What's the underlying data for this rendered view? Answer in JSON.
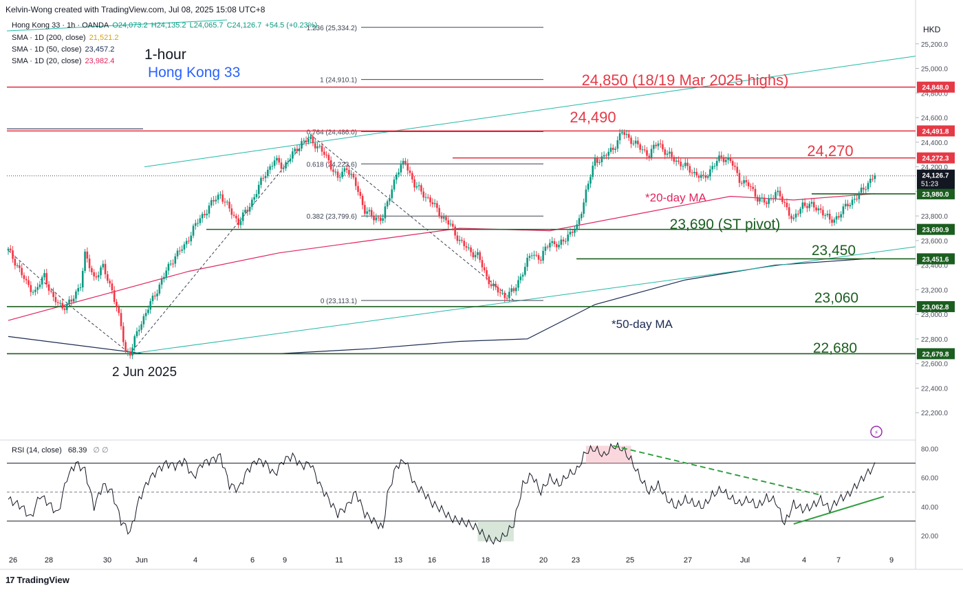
{
  "header": {
    "attribution": "Kelvin-Wong created with TradingView.com, Jul 08, 2025 15:08 UTC+8"
  },
  "legend": {
    "symbol": "Hong Kong 33 · 1h · OANDA",
    "ohlc": {
      "o": "O24,073.2",
      "h": "H24,135.2",
      "l": "L24,065.7",
      "c": "C24,126.7",
      "chg": "+54.5 (+0.23%)"
    },
    "sma200": {
      "label": "SMA · 1D (200, close)",
      "value": "21,521.2",
      "color": "#d4a017"
    },
    "sma50": {
      "label": "SMA · 1D (50, close)",
      "value": "23,457.2",
      "color": "#1a2a52"
    },
    "sma20": {
      "label": "SMA · 1D (20, close)",
      "value": "23,982.4",
      "color": "#e0245e"
    }
  },
  "currency": "HKD",
  "footer": {
    "brand": "TradingView"
  },
  "rsi_legend": {
    "label": "RSI (14, close)",
    "value": "68.39",
    "extra": "∅ ∅"
  },
  "chart_data": {
    "type": "candlestick",
    "timeframe": "1-hour",
    "instrument": "Hong Kong 33",
    "y_axis": {
      "ylim": [
        22000,
        25400
      ],
      "ticks": [
        22200,
        22400,
        22600,
        22800,
        23000,
        23200,
        23400,
        23600,
        23800,
        24000,
        24200,
        24400,
        24600,
        24800,
        25000,
        25200
      ],
      "tick_labels": [
        "22,200.0",
        "22,400.0",
        "22,600.0",
        "22,800.0",
        "23,000.0",
        "23,200.0",
        "23,400.0",
        "23,600.0",
        "23,800.0",
        "24,000.0",
        "24,200.0",
        "24,400.0",
        "24,600.0",
        "24,800.0",
        "25,000.0",
        "25,200.0"
      ]
    },
    "x_axis": {
      "labels": [
        "26",
        "28",
        "30",
        "Jun",
        "4",
        "6",
        "9",
        "11",
        "13",
        "16",
        "18",
        "20",
        "23",
        "25",
        "27",
        "Jul",
        "4",
        "7",
        "9"
      ]
    },
    "price_path": [
      [
        0,
        23520
      ],
      [
        2,
        23400
      ],
      [
        4,
        23250
      ],
      [
        6,
        23180
      ],
      [
        8,
        23320
      ],
      [
        10,
        23120
      ],
      [
        12,
        23060
      ],
      [
        14,
        23100
      ],
      [
        16,
        23250
      ],
      [
        17,
        23480
      ],
      [
        19,
        23300
      ],
      [
        21,
        23380
      ],
      [
        23,
        23200
      ],
      [
        25,
        22900
      ],
      [
        26,
        22700
      ],
      [
        27,
        22680
      ],
      [
        29,
        22900
      ],
      [
        31,
        23050
      ],
      [
        33,
        23200
      ],
      [
        35,
        23350
      ],
      [
        37,
        23480
      ],
      [
        39,
        23550
      ],
      [
        41,
        23700
      ],
      [
        43,
        23800
      ],
      [
        45,
        23900
      ],
      [
        47,
        23980
      ],
      [
        49,
        23850
      ],
      [
        51,
        23750
      ],
      [
        53,
        23850
      ],
      [
        55,
        24000
      ],
      [
        57,
        24150
      ],
      [
        59,
        24250
      ],
      [
        61,
        24200
      ],
      [
        63,
        24300
      ],
      [
        65,
        24400
      ],
      [
        67,
        24420
      ],
      [
        69,
        24350
      ],
      [
        71,
        24250
      ],
      [
        73,
        24100
      ],
      [
        75,
        24200
      ],
      [
        77,
        24050
      ],
      [
        79,
        23850
      ],
      [
        81,
        23780
      ],
      [
        83,
        23790
      ],
      [
        84,
        23900
      ],
      [
        86,
        24150
      ],
      [
        88,
        24240
      ],
      [
        90,
        24050
      ],
      [
        92,
        23980
      ],
      [
        94,
        23900
      ],
      [
        96,
        23800
      ],
      [
        98,
        23720
      ],
      [
        100,
        23600
      ],
      [
        102,
        23520
      ],
      [
        104,
        23480
      ],
      [
        106,
        23300
      ],
      [
        108,
        23200
      ],
      [
        110,
        23150
      ],
      [
        112,
        23190
      ],
      [
        114,
        23350
      ],
      [
        116,
        23500
      ],
      [
        118,
        23450
      ],
      [
        120,
        23600
      ],
      [
        122,
        23550
      ],
      [
        124,
        23650
      ],
      [
        126,
        23700
      ],
      [
        128,
        24000
      ],
      [
        130,
        24250
      ],
      [
        132,
        24280
      ],
      [
        134,
        24350
      ],
      [
        136,
        24480
      ],
      [
        138,
        24420
      ],
      [
        140,
        24350
      ],
      [
        142,
        24300
      ],
      [
        144,
        24400
      ],
      [
        146,
        24300
      ],
      [
        148,
        24250
      ],
      [
        150,
        24200
      ],
      [
        152,
        24150
      ],
      [
        154,
        24100
      ],
      [
        156,
        24200
      ],
      [
        158,
        24280
      ],
      [
        160,
        24250
      ],
      [
        162,
        24100
      ],
      [
        164,
        24050
      ],
      [
        166,
        23950
      ],
      [
        168,
        23900
      ],
      [
        170,
        24000
      ],
      [
        172,
        23900
      ],
      [
        174,
        23760
      ],
      [
        176,
        23900
      ],
      [
        178,
        23880
      ],
      [
        180,
        23850
      ],
      [
        182,
        23760
      ],
      [
        184,
        23800
      ],
      [
        186,
        23900
      ],
      [
        188,
        23950
      ],
      [
        190,
        24050
      ],
      [
        192,
        24127
      ]
    ],
    "sma20_path": [
      [
        0,
        22950
      ],
      [
        20,
        23150
      ],
      [
        40,
        23350
      ],
      [
        60,
        23500
      ],
      [
        80,
        23600
      ],
      [
        100,
        23700
      ],
      [
        120,
        23680
      ],
      [
        140,
        23820
      ],
      [
        160,
        23960
      ],
      [
        174,
        23930
      ],
      [
        192,
        23982
      ]
    ],
    "sma50_path": [
      [
        0,
        22820
      ],
      [
        30,
        22680
      ],
      [
        60,
        22680
      ],
      [
        80,
        22720
      ],
      [
        100,
        22780
      ],
      [
        115,
        22800
      ],
      [
        130,
        23080
      ],
      [
        150,
        23280
      ],
      [
        170,
        23400
      ],
      [
        192,
        23457
      ]
    ],
    "horizontal_levels": [
      {
        "value": 24848.0,
        "tag": "24,848.0",
        "label": "24,850 (18/19 Mar 2025 highs)",
        "color": "#e53946"
      },
      {
        "value": 24491.8,
        "tag": "24,491.8",
        "label": "24,490",
        "color": "#e53946"
      },
      {
        "value": 24272.3,
        "tag": "24,272.3",
        "label": "24,270",
        "color": "#e53946"
      },
      {
        "value": 23980.0,
        "tag": "23,980.0",
        "label": "",
        "color": "#1b5e20"
      },
      {
        "value": 23690.9,
        "tag": "23,690.9",
        "label": "23,690 (ST pivot)",
        "color": "#1b5e20"
      },
      {
        "value": 23451.6,
        "tag": "23,451.6",
        "label": "23,450",
        "color": "#1b5e20"
      },
      {
        "value": 23062.8,
        "tag": "23,062.8",
        "label": "23,060",
        "color": "#1b5e20"
      },
      {
        "value": 22679.8,
        "tag": "22,679.8",
        "label": "22,680",
        "color": "#1b5e20"
      }
    ],
    "last_price": {
      "value": 24126.7,
      "tag": "24,126.7",
      "countdown": "51:23"
    },
    "fibonacci": [
      {
        "ratio": "1.236",
        "value": 25334.2,
        "label": "1.236 (25,334.2)"
      },
      {
        "ratio": "1",
        "value": 24910.1,
        "label": "1 (24,910.1)"
      },
      {
        "ratio": "0.764",
        "value": 24486.0,
        "label": "0.764 (24,486.0)"
      },
      {
        "ratio": "0.618",
        "value": 24223.6,
        "label": "0.618 (24,223.6)"
      },
      {
        "ratio": "0.382",
        "value": 23799.6,
        "label": "0.382 (23,799.6)"
      },
      {
        "ratio": "0",
        "value": 23113.1,
        "label": "0 (23,113.1)"
      }
    ],
    "annotations": {
      "timeframe": "1-hour",
      "instrument": "Hong Kong 33",
      "low_date": "2 Jun 2025",
      "ma20_note": "*20-day MA",
      "ma50_note": "*50-day MA"
    },
    "rsi": {
      "ylim": [
        10,
        85
      ],
      "ticks": [
        20,
        40,
        60,
        80
      ],
      "tick_labels": [
        "20.00",
        "40.00",
        "60.00",
        "80.00"
      ],
      "overbought": 70,
      "oversold": 30,
      "mid": 50,
      "path": [
        [
          0,
          45
        ],
        [
          3,
          40
        ],
        [
          5,
          32
        ],
        [
          7,
          48
        ],
        [
          9,
          42
        ],
        [
          11,
          35
        ],
        [
          13,
          60
        ],
        [
          15,
          70
        ],
        [
          17,
          65
        ],
        [
          19,
          40
        ],
        [
          21,
          55
        ],
        [
          23,
          50
        ],
        [
          25,
          30
        ],
        [
          27,
          22
        ],
        [
          29,
          45
        ],
        [
          31,
          58
        ],
        [
          33,
          65
        ],
        [
          35,
          70
        ],
        [
          37,
          68
        ],
        [
          39,
          72
        ],
        [
          41,
          60
        ],
        [
          43,
          70
        ],
        [
          45,
          72
        ],
        [
          47,
          75
        ],
        [
          49,
          55
        ],
        [
          51,
          52
        ],
        [
          53,
          65
        ],
        [
          55,
          72
        ],
        [
          57,
          70
        ],
        [
          59,
          62
        ],
        [
          61,
          72
        ],
        [
          63,
          75
        ],
        [
          65,
          68
        ],
        [
          67,
          70
        ],
        [
          69,
          55
        ],
        [
          71,
          45
        ],
        [
          73,
          35
        ],
        [
          75,
          40
        ],
        [
          77,
          50
        ],
        [
          79,
          35
        ],
        [
          81,
          30
        ],
        [
          83,
          25
        ],
        [
          84,
          48
        ],
        [
          86,
          68
        ],
        [
          88,
          72
        ],
        [
          90,
          55
        ],
        [
          92,
          50
        ],
        [
          94,
          42
        ],
        [
          96,
          38
        ],
        [
          98,
          32
        ],
        [
          100,
          30
        ],
        [
          102,
          28
        ],
        [
          104,
          25
        ],
        [
          106,
          18
        ],
        [
          108,
          16
        ],
        [
          110,
          20
        ],
        [
          112,
          28
        ],
        [
          114,
          55
        ],
        [
          116,
          62
        ],
        [
          118,
          50
        ],
        [
          120,
          60
        ],
        [
          122,
          55
        ],
        [
          124,
          62
        ],
        [
          126,
          65
        ],
        [
          128,
          78
        ],
        [
          130,
          80
        ],
        [
          132,
          75
        ],
        [
          134,
          82
        ],
        [
          136,
          80
        ],
        [
          138,
          72
        ],
        [
          140,
          60
        ],
        [
          142,
          50
        ],
        [
          144,
          55
        ],
        [
          146,
          45
        ],
        [
          148,
          40
        ],
        [
          150,
          45
        ],
        [
          152,
          42
        ],
        [
          154,
          40
        ],
        [
          156,
          48
        ],
        [
          158,
          52
        ],
        [
          160,
          46
        ],
        [
          162,
          42
        ],
        [
          164,
          45
        ],
        [
          166,
          40
        ],
        [
          168,
          46
        ],
        [
          170,
          44
        ],
        [
          172,
          28
        ],
        [
          174,
          42
        ],
        [
          176,
          38
        ],
        [
          178,
          40
        ],
        [
          180,
          45
        ],
        [
          182,
          38
        ],
        [
          184,
          45
        ],
        [
          186,
          48
        ],
        [
          188,
          55
        ],
        [
          190,
          62
        ],
        [
          192,
          68
        ]
      ],
      "trend_resistance": [
        [
          134,
          82
        ],
        [
          180,
          48
        ]
      ],
      "trend_support": [
        [
          174,
          28
        ],
        [
          194,
          47
        ]
      ]
    }
  }
}
